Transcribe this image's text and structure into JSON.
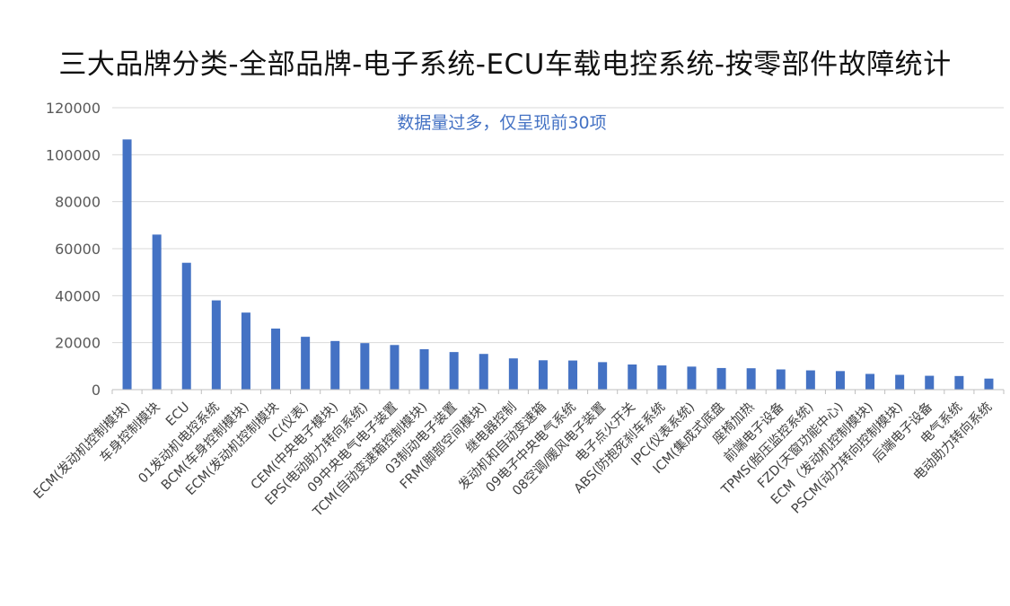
{
  "colors": {
    "bar": "#4472C4",
    "note": "#4472C4",
    "grid": "#D9D9D9",
    "axis": "#BFBFBF"
  },
  "chart_data": {
    "type": "bar",
    "title": "三大品牌分类-全部品牌-电子系统-ECU车载电控系统-按零部件故障统计",
    "annotation": "数据量过多，仅呈现前30项",
    "xlabel": "",
    "ylabel": "",
    "ylim": [
      0,
      120000
    ],
    "yticks": [
      0,
      20000,
      40000,
      60000,
      80000,
      100000,
      120000
    ],
    "grid": true,
    "legend": "none",
    "categories": [
      "ECM(发动机控制模块)",
      "车身控制模块",
      "ECU",
      "01发动机电控系统",
      "BCM(车身控制模块)",
      "ECM(发动机控制模块",
      "IC(仪表)",
      "CEM(中央电子模块)",
      "EPS(电动助力转向系统)",
      "09中央电气电子装置",
      "TCM(自动变速箱控制模块)",
      "03制动电子装置",
      "FRM(脚部空间模块)",
      "继电器控制",
      "发动机和自动变速箱",
      "09电子中央电气系统",
      "08空调/暖风电子装置",
      "电子点火开关",
      "ABS(防抱死刹车系统",
      "IPC(仪表系统)",
      "ICM(集成式底盘",
      "座椅加热",
      "前端电子设备",
      "TPMS(胎压监控系统)",
      "FZD(天窗功能中心)",
      "ECM（发动机控制模块)",
      "PSCM(动力转向控制模块)",
      "后端电子设备",
      "电气系统",
      "电动助力转向系统"
    ],
    "values": [
      106500,
      66000,
      54000,
      38000,
      32800,
      26000,
      22500,
      20700,
      19800,
      19000,
      17200,
      16000,
      15200,
      13300,
      12500,
      12400,
      11700,
      10700,
      10300,
      9800,
      9200,
      9100,
      8600,
      8200,
      7900,
      6700,
      6300,
      5900,
      5800,
      4700
    ]
  }
}
